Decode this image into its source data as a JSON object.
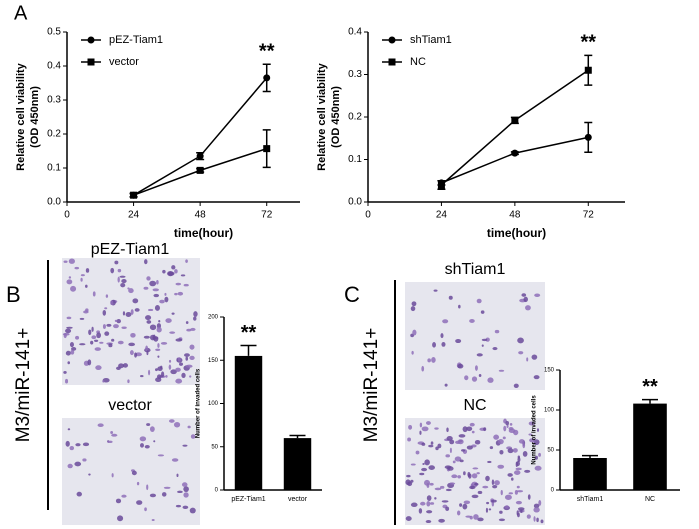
{
  "figure": {
    "panel_labels": [
      "A",
      "B",
      "C"
    ],
    "side_labels": [
      "M3/miR-141+",
      "M3/miR-141+"
    ],
    "image_captions": [
      "pEZ-Tiam1",
      "vector",
      "shTiam1",
      "NC"
    ]
  },
  "chart_data": [
    {
      "type": "line",
      "x": [
        24,
        48,
        72
      ],
      "xlim": [
        0,
        84
      ],
      "xticks": [
        0,
        24,
        48,
        72
      ],
      "xlabel": "time(hour)",
      "ylabel": [
        "Relative cell viability",
        "(OD 450nm)"
      ],
      "ylim": [
        0,
        0.5
      ],
      "yticks": [
        {
          "value": 0,
          "label": "0.0"
        },
        0.1,
        0.2,
        0.3,
        0.4,
        0.5
      ],
      "annotation": "**",
      "series": [
        {
          "name": "pEZ-Tiam1",
          "color": "#000000",
          "marker": "circle",
          "values": [
            0.02,
            0.135,
            0.365
          ],
          "errors": [
            0.005,
            0.01,
            0.04
          ]
        },
        {
          "name": "vector",
          "color": "#000000",
          "marker": "square",
          "values": [
            0.02,
            0.093,
            0.157
          ],
          "errors": [
            0.005,
            0.005,
            0.055
          ]
        }
      ]
    },
    {
      "type": "line",
      "x": [
        24,
        48,
        72
      ],
      "xlim": [
        0,
        84
      ],
      "xticks": [
        0,
        24,
        48,
        72
      ],
      "xlabel": "time(hour)",
      "ylabel": [
        "Relative cell viability",
        "(OD 450nm)"
      ],
      "ylim": [
        0,
        0.4
      ],
      "yticks": [
        {
          "value": 0,
          "label": "0.0"
        },
        0.1,
        0.2,
        0.3,
        0.4
      ],
      "annotation": "**",
      "series": [
        {
          "name": "shTiam1",
          "color": "#000000",
          "marker": "circle",
          "values": [
            0.045,
            0.115,
            0.152
          ],
          "errors": [
            0.005,
            0.003,
            0.035
          ]
        },
        {
          "name": "NC",
          "color": "#000000",
          "marker": "square",
          "values": [
            0.04,
            0.192,
            0.31
          ],
          "errors": [
            0.01,
            0.007,
            0.035
          ]
        }
      ]
    },
    {
      "type": "bar",
      "categories": [
        "pEZ-Tiam1",
        "vector"
      ],
      "values": [
        155,
        60
      ],
      "errors": [
        12,
        3
      ],
      "color": "#000000",
      "ylabel": "Number of invaded cells",
      "ylim": [
        0,
        200
      ],
      "yticks": [
        0,
        50,
        100,
        150,
        200
      ],
      "annotation": "**"
    },
    {
      "type": "bar",
      "categories": [
        "shTiam1",
        "NC"
      ],
      "values": [
        40,
        108
      ],
      "errors": [
        3,
        5
      ],
      "color": "#000000",
      "ylabel": "Number of invaded cells",
      "ylim": [
        0,
        150
      ],
      "yticks": [
        0,
        50,
        100,
        150
      ],
      "annotation": "**"
    }
  ]
}
